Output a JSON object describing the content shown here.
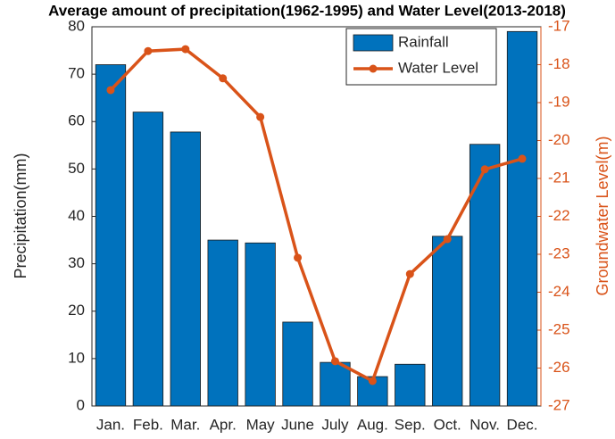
{
  "chart_data": {
    "type": "bar-line",
    "title": "Average amount of precipitation(1962-1995) and Water Level(2013-2018)",
    "y_label": "Precipitation(mm)",
    "y2_label": "Groundwater Level(m)",
    "categories": [
      "Jan.",
      "Feb.",
      "Mar.",
      "Apr.",
      "May",
      "June",
      "July",
      "Aug.",
      "Sep.",
      "Oct.",
      "Nov.",
      "Dec."
    ],
    "series": [
      {
        "name": "Rainfall",
        "type": "bar",
        "color": "#0072bd",
        "values": [
          72,
          62,
          57.8,
          35,
          34.4,
          17.7,
          9.2,
          6.2,
          8.8,
          35.8,
          55.2,
          79
        ]
      },
      {
        "name": "Water Level",
        "type": "line",
        "axis": "y2",
        "color": "#d95319",
        "values": [
          -18.67,
          -17.64,
          -17.59,
          -18.36,
          -19.38,
          -23.09,
          -25.82,
          -26.34,
          -23.52,
          -22.6,
          -20.76,
          -20.48
        ]
      }
    ],
    "ylim": [
      0,
      80
    ],
    "yticks": [
      0,
      10,
      20,
      30,
      40,
      50,
      60,
      70,
      80
    ],
    "y2lim": [
      -27,
      -17
    ],
    "y2ticks": [
      -27,
      -26,
      -25,
      -24,
      -23,
      -22,
      -21,
      -20,
      -19,
      -18,
      -17
    ],
    "legend": "top-right"
  }
}
